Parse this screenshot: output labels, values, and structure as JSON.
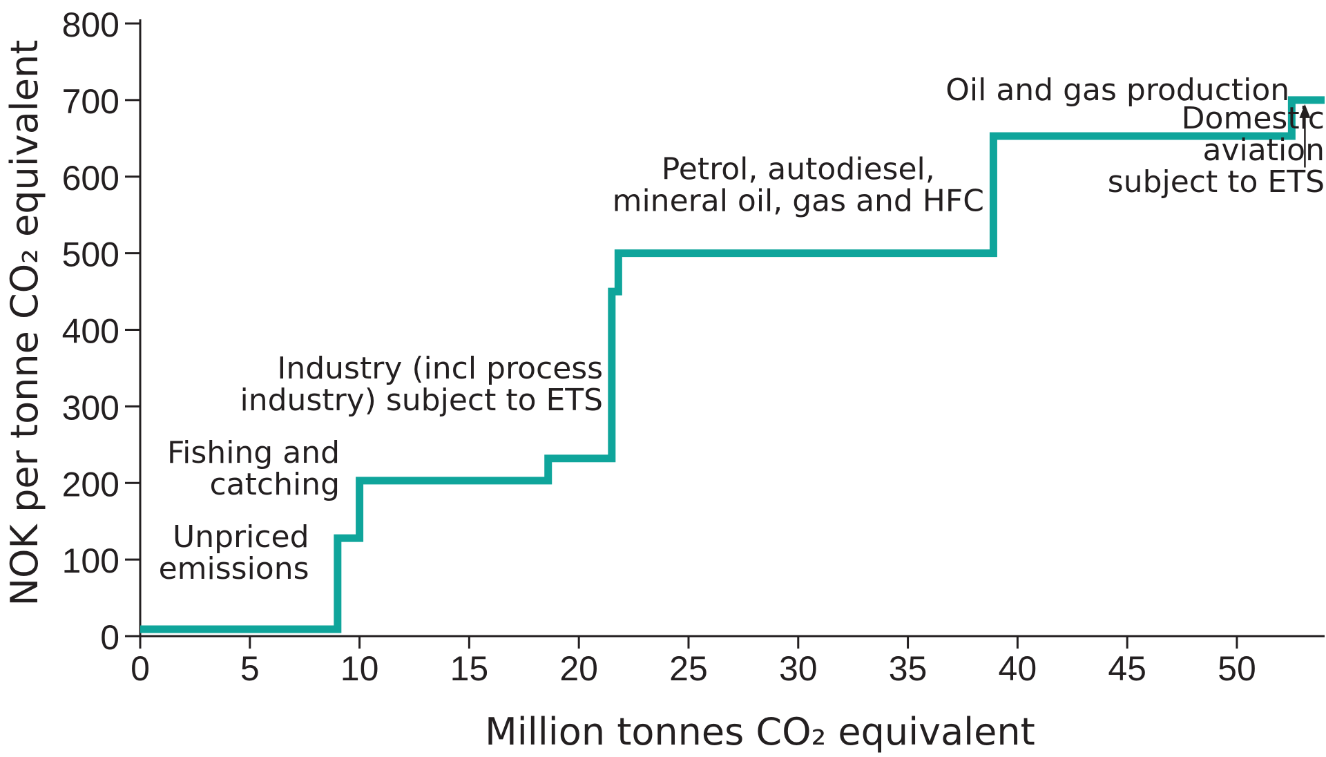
{
  "chart_data": {
    "type": "step",
    "title": "",
    "xlabel": "Million tonnes CO₂ equivalent",
    "ylabel": "NOK per tonne CO₂ equivalent",
    "xlim": [
      0,
      54
    ],
    "ylim": [
      0,
      800
    ],
    "x_ticks": [
      0,
      5,
      10,
      15,
      20,
      25,
      30,
      35,
      40,
      45,
      50
    ],
    "y_ticks": [
      0,
      100,
      200,
      300,
      400,
      500,
      600,
      700,
      800
    ],
    "grid": false,
    "line_color": "#0fa59b",
    "series": [
      {
        "steps": [
          {
            "x0": 0,
            "x1": 9.0,
            "y": 9
          },
          {
            "x0": 9.0,
            "x1": 10.0,
            "y": 128
          },
          {
            "x0": 10.0,
            "x1": 18.6,
            "y": 203
          },
          {
            "x0": 18.6,
            "x1": 21.5,
            "y": 232
          },
          {
            "x0": 21.5,
            "x1": 21.8,
            "y": 450
          },
          {
            "x0": 21.8,
            "x1": 38.9,
            "y": 500
          },
          {
            "x0": 38.9,
            "x1": 52.5,
            "y": 653
          },
          {
            "x0": 52.5,
            "x1": 54.0,
            "y": 700
          }
        ]
      }
    ],
    "annotations": [
      {
        "lines": [
          "Unpriced",
          "emissions"
        ],
        "x": 7.7,
        "y": 75,
        "align": "end"
      },
      {
        "lines": [
          "Fishing and",
          "catching"
        ],
        "x": 9.1,
        "y": 185,
        "align": "end"
      },
      {
        "lines": [
          "Industry (incl process",
          "industry) subject to ETS"
        ],
        "x": 21.1,
        "y": 295,
        "align": "end"
      },
      {
        "lines": [
          "Petrol, autodiesel,",
          "mineral oil, gas and HFC"
        ],
        "x": 30.0,
        "y": 555,
        "align": "middle"
      },
      {
        "lines": [
          "Oil and gas production"
        ],
        "x": 52.4,
        "y": 700,
        "align": "end"
      },
      {
        "lines": [
          "Domestic",
          "aviation",
          "subject to ETS"
        ],
        "x": 54.0,
        "y": 580,
        "align": "end"
      }
    ],
    "arrow": {
      "x": 53.1,
      "from_y": 612,
      "to_y": 700
    }
  }
}
